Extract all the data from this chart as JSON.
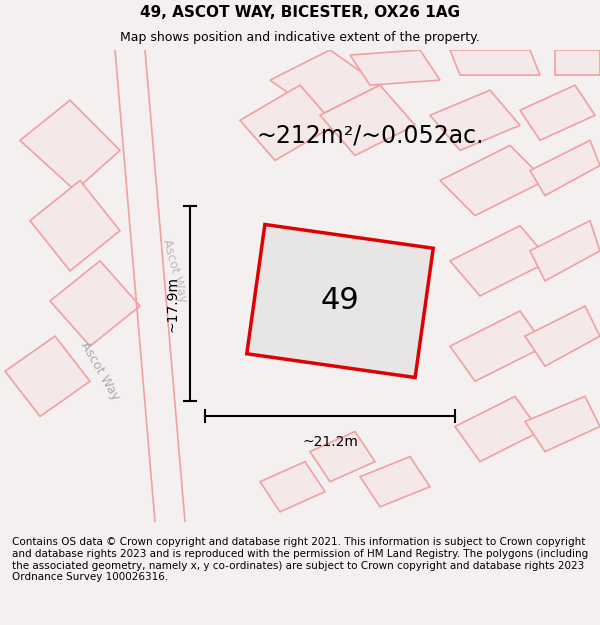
{
  "title": "49, ASCOT WAY, BICESTER, OX26 1AG",
  "subtitle": "Map shows position and indicative extent of the property.",
  "area_text": "~212m²/~0.052ac.",
  "label_49": "49",
  "dim_width": "~21.2m",
  "dim_height": "~17.9m",
  "street_label1": "Ascot Way",
  "street_label2": "Ascot Way",
  "footer": "Contains OS data © Crown copyright and database right 2021. This information is subject to Crown copyright and database rights 2023 and is reproduced with the permission of HM Land Registry. The polygons (including the associated geometry, namely x, y co-ordinates) are subject to Crown copyright and database rights 2023 Ordnance Survey 100026316.",
  "bg_color": "#f5f0f0",
  "map_bg": "#f0eeee",
  "plot_fill": "#e8e8e8",
  "red_color": "#e00000",
  "pink_color": "#f0a0a0",
  "footer_bg": "#ffffff",
  "title_fontsize": 11,
  "subtitle_fontsize": 9,
  "area_fontsize": 17,
  "label_fontsize": 22,
  "dim_fontsize": 10,
  "street_fontsize": 9,
  "footer_fontsize": 7.5
}
